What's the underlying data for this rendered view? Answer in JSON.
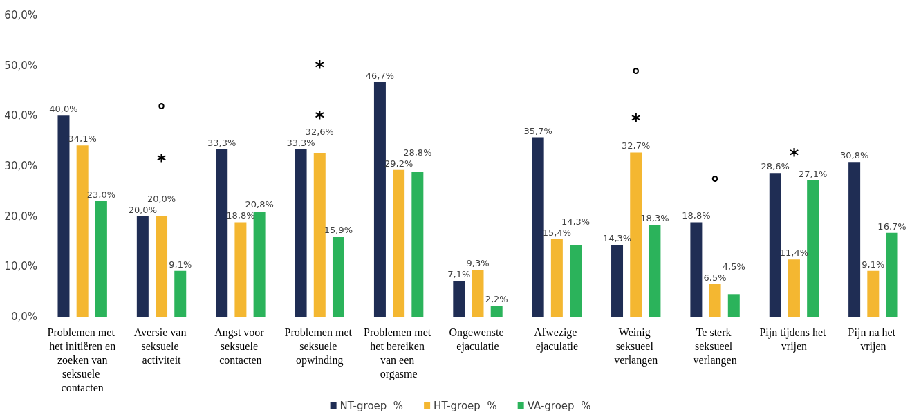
{
  "chart_data": {
    "type": "bar",
    "categories": [
      "Problemen met het initiëren en zoeken van seksuele contacten",
      "Aversie van seksuele activiteit",
      "Angst voor seksuele contacten",
      "Problemen met seksuele opwinding",
      "Problemen met het bereiken van een orgasme",
      "Ongewenste ejaculatie",
      "Afwezige ejaculatie",
      "Weinig seksueel verlangen",
      "Te sterk seksueel verlangen",
      "Pijn tijdens het vrijen",
      "Pijn na het vrijen"
    ],
    "series": [
      {
        "name": "NT-groep  %",
        "color": "#1f2d54",
        "values": [
          40.0,
          20.0,
          33.3,
          33.3,
          46.7,
          7.1,
          35.7,
          14.3,
          18.8,
          28.6,
          30.8
        ],
        "value_labels": [
          "40,0%",
          "20,0%",
          "33,3%",
          "33,3%",
          "46,7%",
          "7,1%",
          "35,7%",
          "14,3%",
          "18,8%",
          "28,6%",
          "30,8%"
        ]
      },
      {
        "name": "HT-groep  %",
        "color": "#f4b731",
        "values": [
          34.1,
          20.0,
          18.8,
          32.6,
          29.2,
          9.3,
          15.4,
          32.7,
          6.5,
          11.4,
          9.1
        ],
        "value_labels": [
          "34,1%",
          "20,0%",
          "18,8%",
          "32,6%",
          "29,2%",
          "9,3%",
          "15,4%",
          "32,7%",
          "6,5%",
          "11,4%",
          "9,1%"
        ]
      },
      {
        "name": "VA-groep  %",
        "color": "#2bb35b",
        "values": [
          23.0,
          9.1,
          20.8,
          15.9,
          28.8,
          2.2,
          14.3,
          18.3,
          4.5,
          27.1,
          16.7
        ],
        "value_labels": [
          "23,0%",
          "9,1%",
          "20,8%",
          "15,9%",
          "28,8%",
          "2,2%",
          "14,3%",
          "18,3%",
          "4,5%",
          "27,1%",
          "16,7%"
        ]
      }
    ],
    "ylim": [
      0,
      60
    ],
    "yticks": [
      {
        "value": 0,
        "label": "0,0%"
      },
      {
        "value": 10,
        "label": "10,0%"
      },
      {
        "value": 20,
        "label": "20,0%"
      },
      {
        "value": 30,
        "label": "30,0%"
      },
      {
        "value": 40,
        "label": "40,0%"
      },
      {
        "value": 50,
        "label": "50,0%"
      },
      {
        "value": 60,
        "label": "60,0%"
      }
    ],
    "annotations": [
      "°",
      "*",
      "*",
      "*",
      "°",
      "*",
      "°",
      "*"
    ],
    "grid": false,
    "legend": "bottom"
  }
}
